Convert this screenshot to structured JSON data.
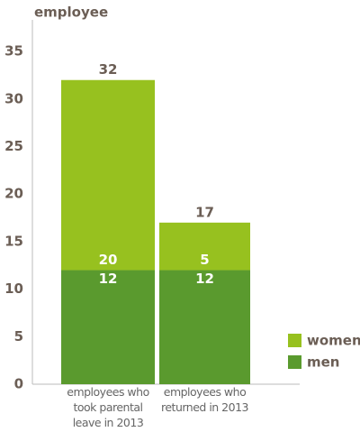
{
  "chart_data": {
    "type": "stacked-bar",
    "y_label": "employee",
    "categories": [
      "employees who took parental leave in 2013",
      "employees who returned in 2013"
    ],
    "series": [
      {
        "name": "men",
        "color": "#5a9a2e",
        "values": [
          12,
          12
        ]
      },
      {
        "name": "women",
        "color": "#97c11f",
        "values": [
          20,
          5
        ]
      }
    ],
    "totals": [
      32,
      17
    ],
    "ylim": [
      0,
      38
    ],
    "yticks": [
      0,
      5,
      10,
      15,
      20,
      25,
      30,
      35
    ]
  }
}
